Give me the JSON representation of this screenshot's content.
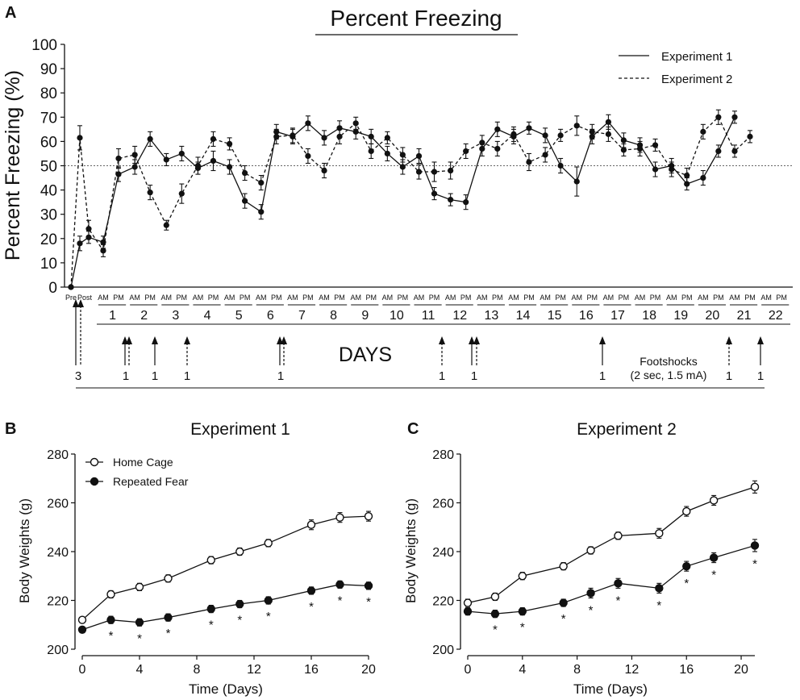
{
  "panels": {
    "a": "A",
    "b": "B",
    "c": "C"
  },
  "chart_data": [
    {
      "type": "line",
      "title": "Percent Freezing",
      "ylabel": "Percent Freezing (%)",
      "xlabel": "DAYS",
      "ylim": [
        0,
        100
      ],
      "yticks": [
        0,
        10,
        20,
        30,
        40,
        50,
        60,
        70,
        80,
        90,
        100
      ],
      "reference_line": 50,
      "session_labels": [
        "Pre",
        "Post",
        "AM",
        "PM"
      ],
      "days": [
        "1",
        "2",
        "3",
        "4",
        "5",
        "6",
        "7",
        "8",
        "9",
        "10",
        "11",
        "12",
        "13",
        "14",
        "15",
        "16",
        "17",
        "18",
        "19",
        "20",
        "21",
        "22"
      ],
      "legend": {
        "position": "top-right",
        "series": [
          "Experiment 1",
          "Experiment 2"
        ]
      },
      "series": [
        {
          "name": "Experiment 1",
          "style": "solid",
          "values": [
            0,
            18,
            20.5,
            18.5,
            46.5,
            49.5,
            61,
            52.5,
            55,
            49,
            52,
            49.5,
            35.5,
            31,
            64,
            62,
            67.5,
            61.5,
            65.5,
            64,
            62,
            55,
            49.5,
            54,
            38.5,
            36,
            35,
            57,
            65,
            62,
            65.5,
            62.5,
            50,
            43.5,
            62,
            68,
            60.5,
            58.5,
            48.5,
            50,
            42.5,
            45,
            56,
            70
          ],
          "errors": [
            0,
            3,
            2.5,
            2.5,
            3,
            3,
            3,
            2.5,
            3,
            2.5,
            4,
            3,
            3,
            3,
            3,
            3,
            3,
            3,
            3,
            3,
            3,
            3,
            3,
            3,
            2.5,
            2.5,
            3,
            3,
            3,
            3,
            2.5,
            3,
            3,
            6,
            3,
            3,
            3,
            3,
            3,
            3,
            2.5,
            3,
            2.5,
            2.5
          ]
        },
        {
          "name": "Experiment 2",
          "style": "dashed",
          "values": [
            0,
            61.5,
            24,
            15,
            53,
            54.5,
            39,
            25.5,
            38.5,
            50,
            61,
            59,
            47,
            43,
            62,
            62.5,
            54,
            48,
            62,
            67.5,
            56,
            61.5,
            54.5,
            47.5,
            47.5,
            48,
            56,
            59.5,
            57,
            63,
            51.5,
            54.5,
            62.5,
            66.5,
            64,
            63,
            56.5,
            57,
            58.5,
            48.5,
            46,
            64,
            70,
            56,
            62
          ],
          "errors": [
            0,
            5,
            3.5,
            2.5,
            4,
            3.5,
            3,
            2,
            4,
            3.5,
            3,
            2.5,
            3,
            3,
            3,
            3,
            3,
            3,
            3,
            2.5,
            3,
            2.5,
            3,
            3,
            4,
            3.5,
            3,
            3,
            3,
            3,
            3.5,
            3,
            2.5,
            4,
            3,
            3,
            2.5,
            3,
            2.5,
            3,
            3,
            3,
            3,
            2.5,
            2.5
          ]
        }
      ],
      "footshocks": {
        "label_line1": "Footshocks",
        "label_line2": "(2 sec, 1.5 mA)",
        "counts": [
          "3",
          "1",
          "1",
          "1",
          "1",
          "1",
          "1",
          "1",
          "1",
          "1"
        ]
      }
    },
    {
      "type": "line",
      "title": "Experiment 1",
      "xlabel": "Time (Days)",
      "ylabel": "Body Weights (g)",
      "xlim": [
        0,
        20
      ],
      "xticks": [
        0,
        4,
        8,
        12,
        16,
        20
      ],
      "ylim": [
        200,
        280
      ],
      "yticks": [
        200,
        220,
        240,
        260,
        280
      ],
      "legend": {
        "position": "top-left",
        "series": [
          "Home Cage",
          "Repeated Fear"
        ]
      },
      "series": [
        {
          "name": "Home Cage",
          "marker": "open",
          "x": [
            0,
            2,
            4,
            6,
            9,
            11,
            13,
            16,
            18,
            20
          ],
          "values": [
            212,
            222.5,
            225.5,
            229,
            236.5,
            240,
            243.5,
            251,
            254,
            254.5
          ],
          "errors": [
            1,
            1.5,
            1.5,
            1.5,
            1.5,
            1.5,
            1.5,
            2,
            2,
            2
          ]
        },
        {
          "name": "Repeated Fear",
          "marker": "filled",
          "x": [
            0,
            2,
            4,
            6,
            9,
            11,
            13,
            16,
            18,
            20
          ],
          "values": [
            208,
            212,
            211,
            213,
            216.5,
            218.5,
            220,
            224,
            226.5,
            226
          ],
          "errors": [
            1,
            1.5,
            1.5,
            1.5,
            1.5,
            1.5,
            1.5,
            1.5,
            1.5,
            1.5
          ]
        }
      ],
      "significance_marker": "*",
      "significant_x": [
        2,
        4,
        6,
        9,
        11,
        13,
        16,
        18,
        20
      ]
    },
    {
      "type": "line",
      "title": "Experiment 2",
      "xlabel": "Time (Days)",
      "ylabel": "Body Weights (g)",
      "xlim": [
        0,
        21
      ],
      "xticks": [
        0,
        4,
        8,
        12,
        16,
        20
      ],
      "ylim": [
        200,
        280
      ],
      "yticks": [
        200,
        220,
        240,
        260,
        280
      ],
      "series": [
        {
          "name": "Home Cage",
          "marker": "open",
          "x": [
            0,
            2,
            4,
            7,
            9,
            11,
            14,
            16,
            18,
            21
          ],
          "values": [
            219,
            221.5,
            230,
            234,
            240.5,
            246.5,
            247.5,
            256.5,
            261,
            266.5
          ],
          "errors": [
            1.5,
            1.5,
            1.5,
            1.5,
            1.5,
            1.5,
            2,
            2,
            2,
            2.5
          ]
        },
        {
          "name": "Repeated Fear",
          "marker": "filled",
          "x": [
            0,
            2,
            4,
            7,
            9,
            11,
            14,
            16,
            18,
            21
          ],
          "values": [
            215.5,
            214.5,
            215.5,
            219,
            223,
            227,
            225,
            234,
            237.5,
            242.5
          ],
          "errors": [
            1.5,
            1.5,
            1.5,
            1.5,
            2,
            2,
            2,
            2,
            2,
            2.5
          ]
        }
      ],
      "significance_marker": "*",
      "significant_x": [
        2,
        4,
        7,
        9,
        11,
        14,
        16,
        18,
        21
      ]
    }
  ]
}
